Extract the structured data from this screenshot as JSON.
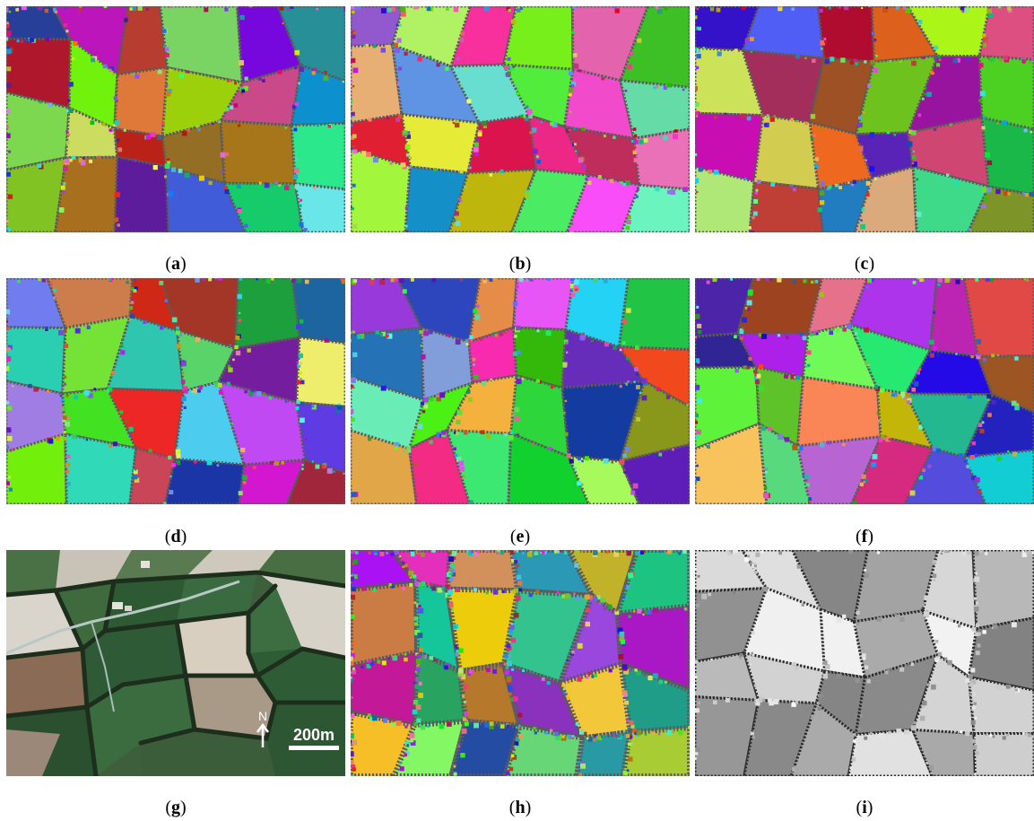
{
  "figure": {
    "panels": [
      {
        "label": "a",
        "kind": "segmentation"
      },
      {
        "label": "b",
        "kind": "segmentation"
      },
      {
        "label": "c",
        "kind": "segmentation"
      },
      {
        "label": "d",
        "kind": "segmentation"
      },
      {
        "label": "e",
        "kind": "segmentation"
      },
      {
        "label": "f",
        "kind": "segmentation"
      },
      {
        "label": "g",
        "kind": "satellite-image"
      },
      {
        "label": "h",
        "kind": "segmentation"
      },
      {
        "label": "i",
        "kind": "grayscale-map"
      }
    ],
    "north_arrow_label": "N",
    "scale_label": "200m"
  },
  "colors": {
    "background": "#ffffff",
    "satellite_dark_field": "#2f5a34",
    "satellite_hedge": "#1e2e1c",
    "segment_boundary": "#3a3a3a"
  }
}
